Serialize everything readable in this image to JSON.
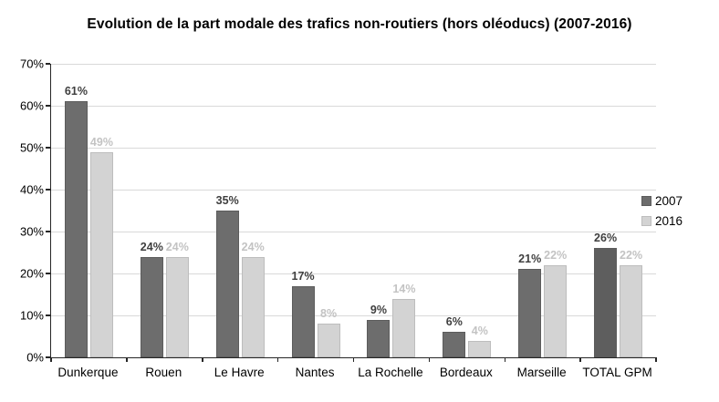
{
  "chart_data": {
    "type": "bar",
    "title": "Evolution de la part modale des trafics non-routiers (hors oléoducs) (2007-2016)",
    "categories": [
      "Dunkerque",
      "Rouen",
      "Le Havre",
      "Nantes",
      "La Rochelle",
      "Bordeaux",
      "Marseille",
      "TOTAL GPM"
    ],
    "series": [
      {
        "name": "2007",
        "color": "#6d6d6d",
        "label_color": "#3f3f3f",
        "values": [
          61,
          24,
          35,
          17,
          9,
          6,
          21,
          26
        ],
        "labels": [
          "61%",
          "24%",
          "35%",
          "17%",
          "9%",
          "6%",
          "21%",
          "26%"
        ]
      },
      {
        "name": "2016",
        "color": "#d3d3d3",
        "label_color": "#c3c3c3",
        "values": [
          49,
          24,
          24,
          8,
          14,
          4,
          22,
          22
        ],
        "labels": [
          "49%",
          "24%",
          "24%",
          "8%",
          "14%",
          "4%",
          "22%",
          "22%"
        ]
      }
    ],
    "emphasis": {
      "category": "TOTAL GPM",
      "series": "2007",
      "color": "#5e5e5e"
    },
    "ylim": [
      0,
      70
    ],
    "ytick_step": 10,
    "ytick_labels": [
      "0%",
      "10%",
      "20%",
      "30%",
      "40%",
      "50%",
      "60%",
      "70%"
    ],
    "xlabel": "",
    "ylabel": "",
    "grid": true,
    "gridline_color": "#d9d9d9",
    "axis_color": "#262626",
    "legend_position": "right",
    "legend_entries": [
      "2007",
      "2016"
    ]
  }
}
